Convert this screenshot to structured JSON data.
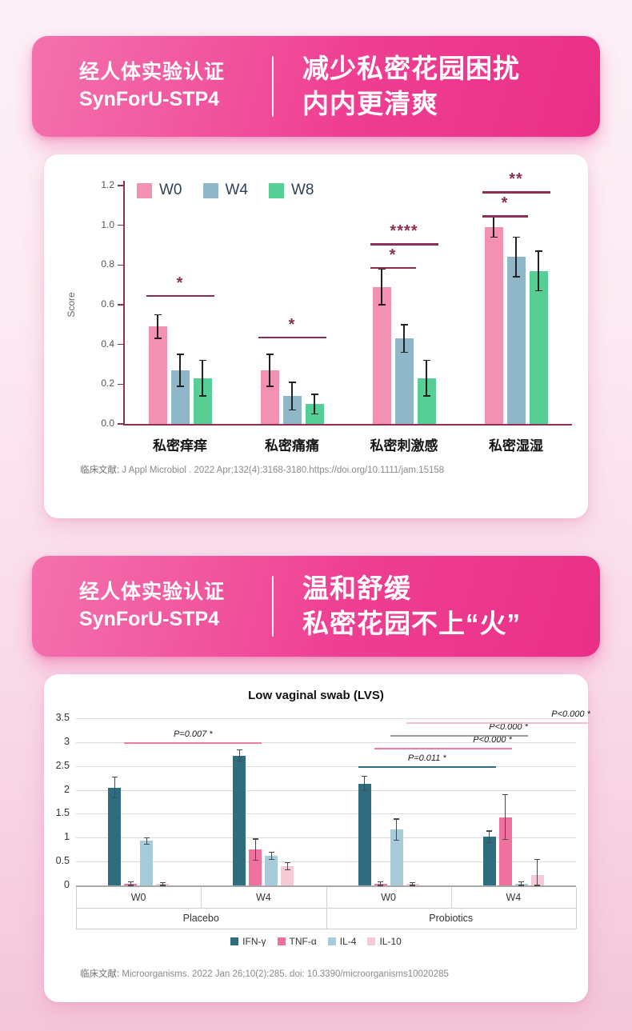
{
  "banner1": {
    "cert_line1": "经人体实验认证",
    "cert_line2": "SynForU-STP4",
    "headline_line1": "减少私密花园困扰",
    "headline_line2": "内内更清爽"
  },
  "banner2": {
    "cert_line1": "经人体实验认证",
    "cert_line2": "SynForU-STP4",
    "headline_line1": "温和舒缓",
    "headline_line2": "私密花园不上“火”"
  },
  "chart_data": [
    {
      "id": "chart1",
      "type": "bar",
      "title": "",
      "ylabel": "Score",
      "ylim": [
        0,
        1.2
      ],
      "ytick_step": 0.2,
      "grid": false,
      "legend_position": "top-left",
      "axis_color": "#8D2E55",
      "sig_color": "#8D2E55",
      "categories": [
        "私密痒痒",
        "私密痛痛",
        "私密刺激感",
        "私密湿湿"
      ],
      "series": [
        {
          "name": "W0",
          "color": "#F291B2",
          "values": [
            0.49,
            0.27,
            0.69,
            0.99
          ],
          "errors": [
            0.06,
            0.08,
            0.09,
            0.05
          ]
        },
        {
          "name": "W4",
          "color": "#8FB7C7",
          "values": [
            0.27,
            0.14,
            0.43,
            0.84
          ],
          "errors": [
            0.08,
            0.07,
            0.07,
            0.1
          ]
        },
        {
          "name": "W8",
          "color": "#57CE95",
          "values": [
            0.23,
            0.1,
            0.23,
            0.77
          ],
          "errors": [
            0.09,
            0.05,
            0.09,
            0.1
          ]
        }
      ],
      "significance": [
        {
          "group": 0,
          "from_bar": 0,
          "to_bar": 2,
          "y": 0.65,
          "label": "*"
        },
        {
          "group": 1,
          "from_bar": 0,
          "to_bar": 2,
          "y": 0.44,
          "label": "*"
        },
        {
          "group": 2,
          "from_bar": 0,
          "to_bar": 1,
          "y": 0.79,
          "label": "*"
        },
        {
          "group": 2,
          "from_bar": 0,
          "to_bar": 2,
          "y": 0.91,
          "label": "****"
        },
        {
          "group": 3,
          "from_bar": 0,
          "to_bar": 1,
          "y": 1.05,
          "label": "*"
        },
        {
          "group": 3,
          "from_bar": 0,
          "to_bar": 2,
          "y": 1.17,
          "label": "**"
        }
      ],
      "citation_label": "临床文献: ",
      "citation_text": "J Appl Microbiol . 2022 Apr;132(4):3168-3180.https://doi.org/10.1111/jam.15158"
    },
    {
      "id": "chart2",
      "type": "bar",
      "title": "Low vaginal swab (LVS)",
      "ylim": [
        0,
        3.5
      ],
      "ytick_step": 0.5,
      "grid": true,
      "legend_position": "bottom",
      "group_row1": [
        "W0",
        "W4",
        "W0",
        "W4"
      ],
      "group_row2": [
        "Placebo",
        "Probiotics"
      ],
      "series": [
        {
          "name": "IFN-γ",
          "color": "#2F6D7E",
          "values": [
            2.05,
            2.72,
            2.13,
            1.02
          ],
          "errors": [
            0.22,
            0.12,
            0.15,
            0.12
          ]
        },
        {
          "name": "TNF-α",
          "color": "#F0709E",
          "values": [
            0.03,
            0.75,
            0.03,
            1.43
          ],
          "errors": [
            0.04,
            0.22,
            0.04,
            0.47
          ]
        },
        {
          "name": "IL-4",
          "color": "#A7CBD9",
          "values": [
            0.93,
            0.62,
            1.17,
            0.03
          ],
          "errors": [
            0.07,
            0.07,
            0.22,
            0.04
          ]
        },
        {
          "name": "IL-10",
          "color": "#F5C9D5",
          "values": [
            0.03,
            0.4,
            0.03,
            0.22
          ],
          "errors": [
            0.03,
            0.08,
            0.03,
            0.32
          ]
        }
      ],
      "significance": [
        {
          "from_group": 0,
          "from_bar": 1,
          "to_group": 1,
          "to_bar": 1,
          "y": 3.0,
          "label": "P=0.007 *",
          "color": "#F07BA6",
          "anchor": "center"
        },
        {
          "from_group": 2,
          "from_bar": 0,
          "to_group": 3,
          "to_bar": 0,
          "y": 2.5,
          "label": "P=0.011 *",
          "color": "#2F6D7E",
          "anchor": "center"
        },
        {
          "from_group": 2,
          "from_bar": 1,
          "to_group": 3,
          "to_bar": 1,
          "y": 2.88,
          "label": "P<0.000 *",
          "color": "#F07BA6",
          "anchor": "right"
        },
        {
          "from_group": 2,
          "from_bar": 2,
          "to_group": 3,
          "to_bar": 2,
          "y": 3.15,
          "label": "P<0.000 *",
          "color": "#9A9A9A",
          "anchor": "right"
        },
        {
          "from_group": 2,
          "from_bar": 3,
          "to_group": 3,
          "to_bar": 3,
          "y": 3.42,
          "label": "P<0.000 *",
          "color": "#F3BECE",
          "anchor": "right",
          "extend_right": 58
        }
      ],
      "citation_label": "临床文献: ",
      "citation_text": "Microorganisms. 2022 Jan 26;10(2):285. doi: 10.3390/microorganisms10020285"
    }
  ]
}
